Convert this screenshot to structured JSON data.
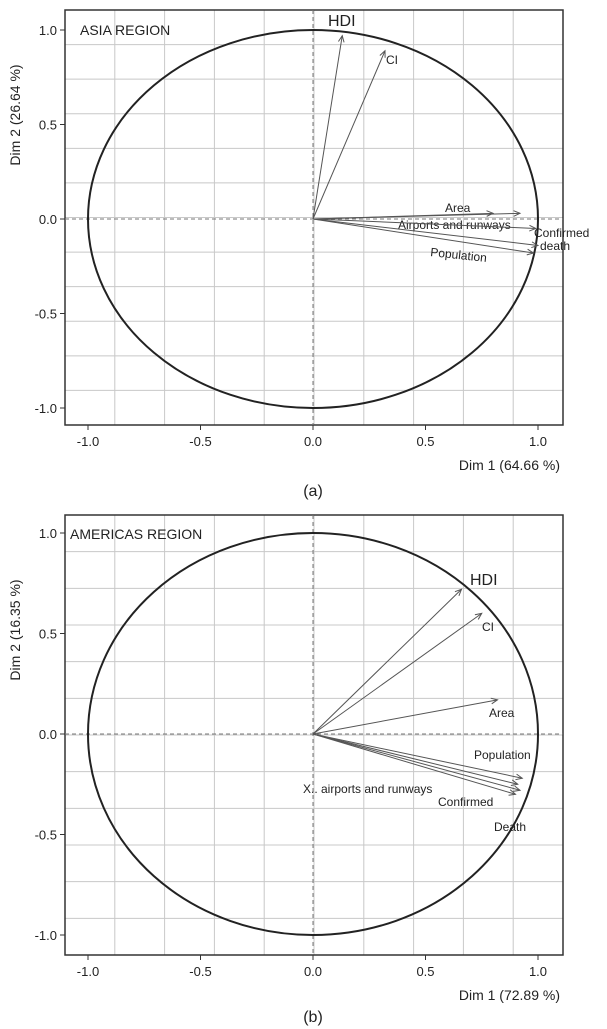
{
  "chart_data": [
    {
      "type": "scatter",
      "subtype": "correlation-circle",
      "title": "ASIA REGION",
      "caption": "(a)",
      "xlabel": "Dim 1 (64.66 %)",
      "ylabel": "Dim 2 (26.64 %)",
      "xlim": [
        -1.1,
        1.1
      ],
      "ylim": [
        -1.1,
        1.1
      ],
      "xticks": [
        "-1.0",
        "-0.5",
        "0.0",
        "0.5",
        "1.0"
      ],
      "yticks": [
        "1.0",
        "0.5",
        "0.0",
        "-0.5",
        "-1.0"
      ],
      "grid": true,
      "vectors": [
        {
          "label": "HDI",
          "x": 0.13,
          "y": 0.97
        },
        {
          "label": "CI",
          "x": 0.32,
          "y": 0.89
        },
        {
          "label": "Area",
          "x": 0.8,
          "y": 0.03
        },
        {
          "label": "Airports and runways",
          "x": 0.92,
          "y": 0.03
        },
        {
          "label": "Confirmed",
          "x": 0.99,
          "y": -0.05
        },
        {
          "label": "death",
          "x": 1.0,
          "y": -0.14
        },
        {
          "label": "Population",
          "x": 0.98,
          "y": -0.18
        }
      ]
    },
    {
      "type": "scatter",
      "subtype": "correlation-circle",
      "title": "AMERICAS REGION",
      "caption": "(b)",
      "xlabel": "Dim 1 (72.89 %)",
      "ylabel": "Dim 2 (16.35 %)",
      "xlim": [
        -1.1,
        1.1
      ],
      "ylim": [
        -1.1,
        1.1
      ],
      "xticks": [
        "-1.0",
        "-0.5",
        "0.0",
        "0.5",
        "1.0"
      ],
      "yticks": [
        "1.0",
        "0.5",
        "0.0",
        "-0.5",
        "-1.0"
      ],
      "grid": true,
      "vectors": [
        {
          "label": "HDI",
          "x": 0.66,
          "y": 0.72
        },
        {
          "label": "CI",
          "x": 0.75,
          "y": 0.6
        },
        {
          "label": "Area",
          "x": 0.82,
          "y": 0.17
        },
        {
          "label": "Population",
          "x": 0.93,
          "y": -0.22
        },
        {
          "label": "X.. airports and runways",
          "x": 0.91,
          "y": -0.25
        },
        {
          "label": "Confirmed",
          "x": 0.92,
          "y": -0.28
        },
        {
          "label": "Death",
          "x": 0.9,
          "y": -0.3
        }
      ]
    }
  ]
}
